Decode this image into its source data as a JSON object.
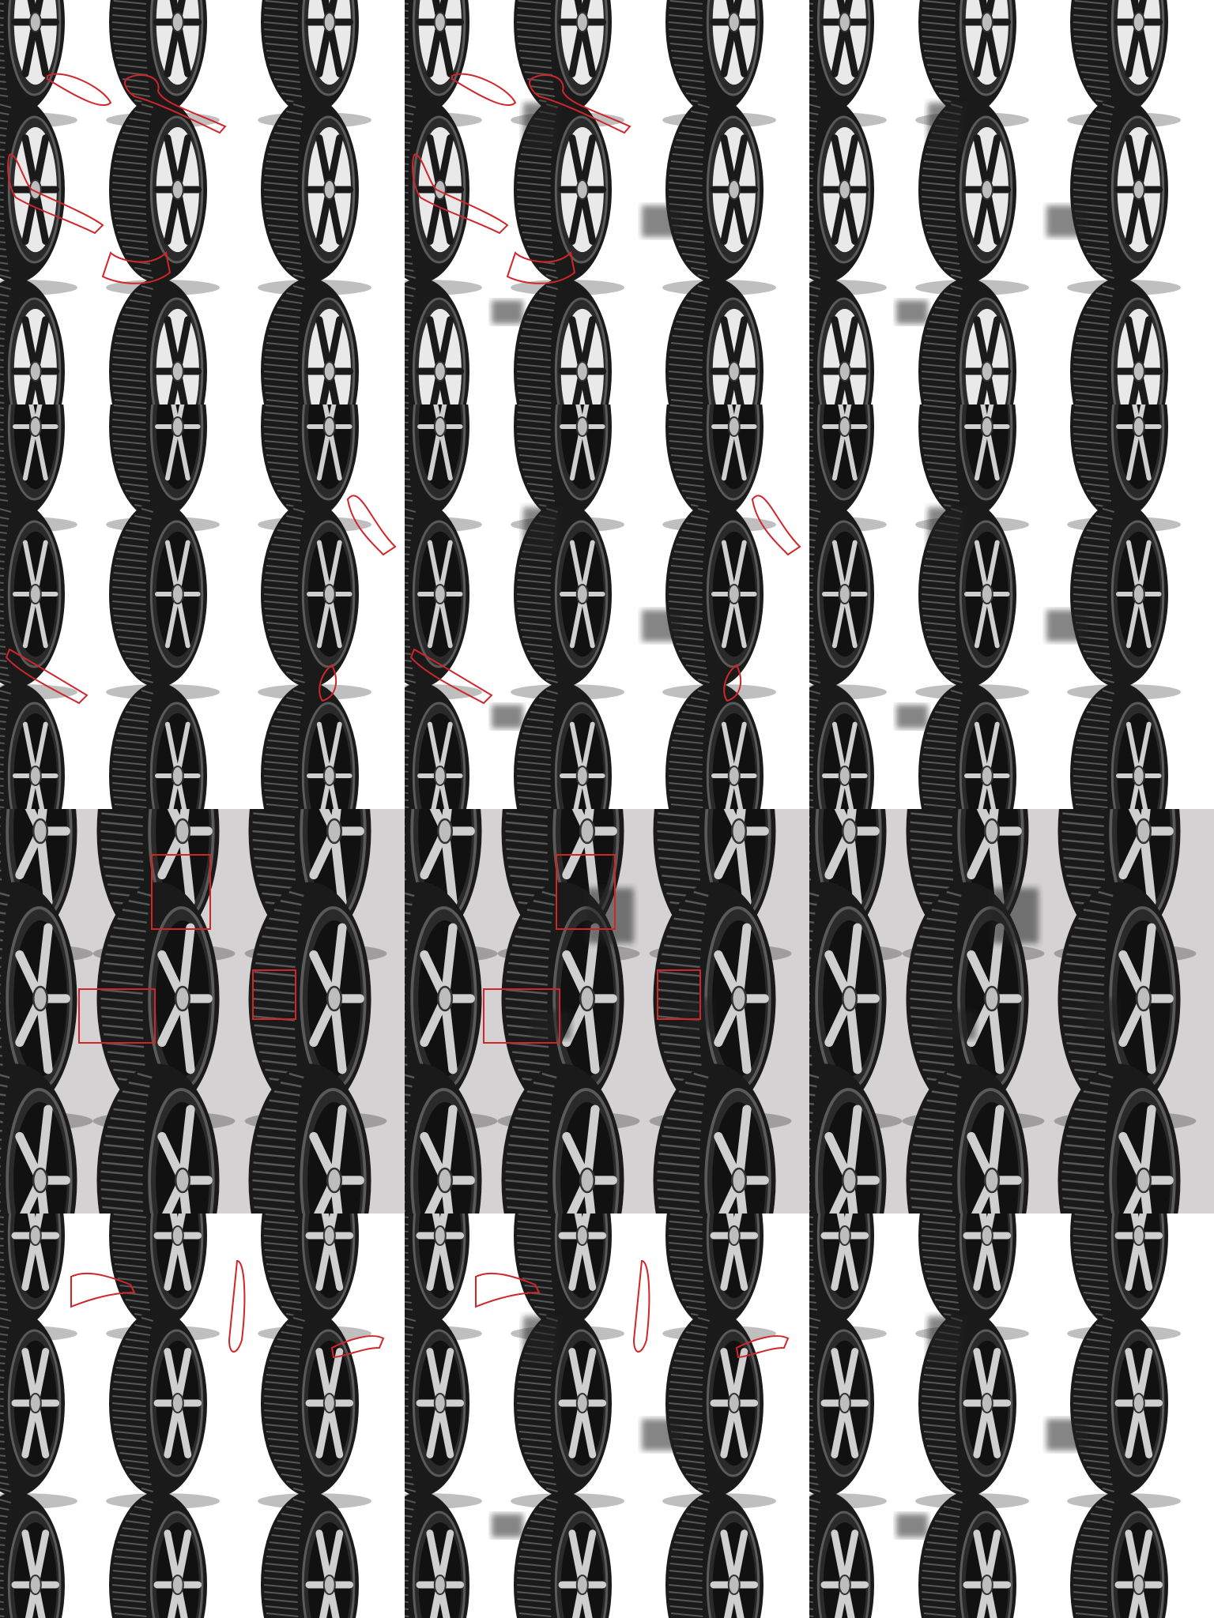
{
  "grid": {
    "rows": [
      {
        "name": "row-1",
        "background": "#ffffff",
        "tire_style": "chrome-spoke-wheel",
        "mask_style": "freeform-outline",
        "cells": [
          {
            "role": "masked-input",
            "has_mask": true,
            "artifacts": false
          },
          {
            "role": "masked-result",
            "has_mask": true,
            "artifacts": true
          },
          {
            "role": "inpainted-output",
            "has_mask": false,
            "artifacts": true
          }
        ]
      },
      {
        "name": "row-2",
        "background": "#ffffff",
        "tire_style": "winter-tread-alloy",
        "mask_style": "freeform-outline",
        "cells": [
          {
            "role": "masked-input",
            "has_mask": true,
            "artifacts": false
          },
          {
            "role": "masked-result",
            "has_mask": true,
            "artifacts": true
          },
          {
            "role": "inpainted-output",
            "has_mask": false,
            "artifacts": true
          }
        ]
      },
      {
        "name": "row-3",
        "background": "#d4d2d3",
        "tire_style": "sport-tread-silver-wheel",
        "mask_style": "rectangle-boxes",
        "cells": [
          {
            "role": "masked-input",
            "has_mask": true,
            "artifacts": false
          },
          {
            "role": "masked-result",
            "has_mask": true,
            "artifacts": true
          },
          {
            "role": "inpainted-output",
            "has_mask": false,
            "artifacts": true
          }
        ]
      },
      {
        "name": "row-4",
        "background": "#ffffff",
        "tire_style": "touring-tread-split-spoke",
        "mask_style": "freeform-outline",
        "cells": [
          {
            "role": "masked-input",
            "has_mask": true,
            "artifacts": false
          },
          {
            "role": "masked-result",
            "has_mask": true,
            "artifacts": true
          },
          {
            "role": "inpainted-output",
            "has_mask": false,
            "artifacts": true
          }
        ]
      }
    ]
  },
  "colors": {
    "mask_outline": "#d0262a",
    "tire_dark": "#1a1a1a",
    "tire_mid": "#5a5a5a",
    "rim_light": "#cfcfcf",
    "white_bg": "#ffffff",
    "grey_bg": "#d4d2d3"
  }
}
